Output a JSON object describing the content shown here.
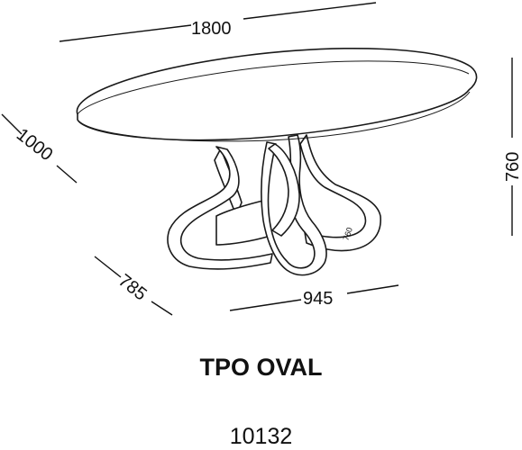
{
  "dimensions": {
    "length": "1800",
    "width": "1000",
    "height": "760",
    "base_width": "945",
    "base_depth": "785",
    "base_inner_height": "760"
  },
  "product": {
    "name": "TPO OVAL",
    "code": "10132"
  }
}
